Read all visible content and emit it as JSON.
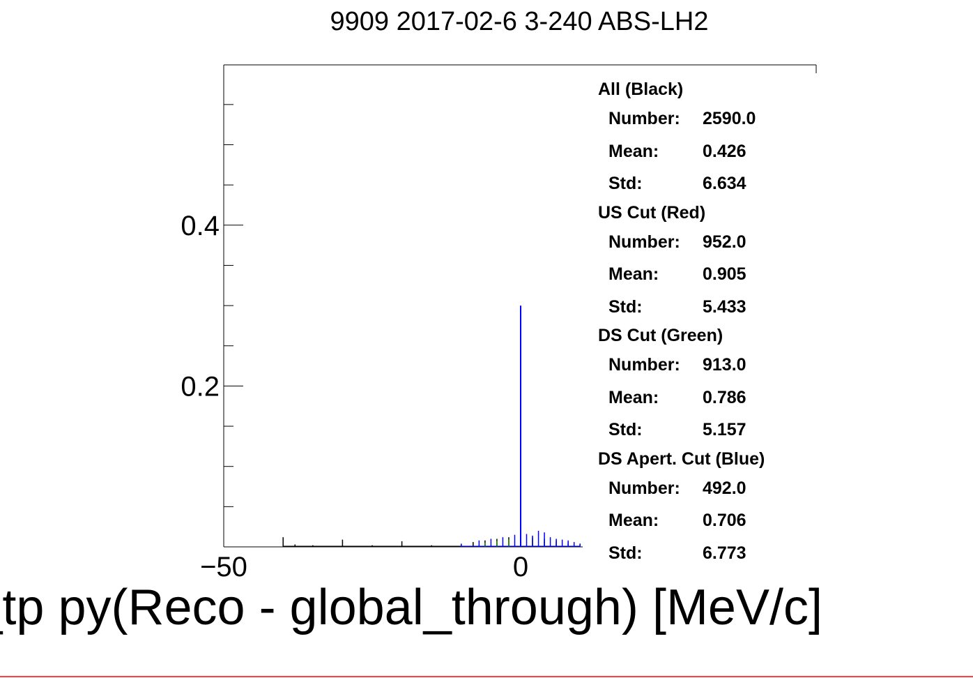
{
  "title": "9909 2017-02-6 3-240 ABS-LH2",
  "chart_data": {
    "type": "histogram",
    "title": "9909 2017-02-6 3-240 ABS-LH2",
    "xlabel": "_tp py(Reco - global_through) [MeV/c]",
    "ylabel": "",
    "xlim": [
      -50,
      10
    ],
    "ylim": [
      0,
      0.58
    ],
    "x_ticks": [
      -50,
      0
    ],
    "x_tick_labels": [
      "−50",
      "0"
    ],
    "y_ticks": [
      0.2,
      0.4
    ],
    "y_tick_labels": [
      "0.2",
      "0.4"
    ],
    "grid": false,
    "series": [
      {
        "name": "All (Black)",
        "color": "#000000",
        "x": [
          -40,
          -38,
          -35,
          -30,
          -25,
          -20,
          -15,
          -10,
          -8,
          -6,
          -4,
          -2,
          0,
          2,
          4,
          6,
          8,
          10
        ],
        "values": [
          0.012,
          0.003,
          0.002,
          0.009,
          0.002,
          0.007,
          0.002,
          0.003,
          0.006,
          0.008,
          0.01,
          0.012,
          0.014,
          0.012,
          0.01,
          0.008,
          0.006,
          0.004
        ]
      },
      {
        "name": "US Cut (Red)",
        "color": "#ff0000",
        "x": [
          -10,
          -6,
          -4,
          -2,
          0,
          2,
          4,
          6,
          8,
          10
        ],
        "values": [
          0.002,
          0.004,
          0.006,
          0.008,
          0.01,
          0.008,
          0.007,
          0.005,
          0.003,
          0.002
        ]
      },
      {
        "name": "DS Cut (Green)",
        "color": "#00a000",
        "x": [
          -10,
          -6,
          -4,
          -2,
          0,
          2,
          4,
          6,
          8,
          10
        ],
        "values": [
          0.002,
          0.005,
          0.007,
          0.009,
          0.011,
          0.009,
          0.008,
          0.006,
          0.004,
          0.002
        ]
      },
      {
        "name": "DS Apert. Cut (Blue)",
        "color": "#0000ff",
        "x": [
          -10,
          -7,
          -5,
          -3,
          -1,
          0,
          1,
          2,
          3,
          4,
          5,
          6,
          7,
          8,
          9,
          10
        ],
        "values": [
          0.004,
          0.008,
          0.01,
          0.012,
          0.015,
          0.3,
          0.016,
          0.014,
          0.02,
          0.018,
          0.012,
          0.01,
          0.009,
          0.008,
          0.006,
          0.004
        ]
      }
    ]
  },
  "stats": [
    {
      "name": "All (Black)",
      "number_label": "Number:",
      "number": "2590.0",
      "mean_label": "Mean:",
      "mean": "0.426",
      "std_label": "Std:",
      "std": "6.634"
    },
    {
      "name": "US Cut (Red)",
      "number_label": "Number:",
      "number": "952.0",
      "mean_label": "Mean:",
      "mean": "0.905",
      "std_label": "Std:",
      "std": "5.433"
    },
    {
      "name": "DS Cut (Green)",
      "number_label": "Number:",
      "number": "913.0",
      "mean_label": "Mean:",
      "mean": "0.786",
      "std_label": "Std:",
      "std": "5.157"
    },
    {
      "name": "DS Apert. Cut (Blue)",
      "number_label": "Number:",
      "number": "492.0",
      "mean_label": "Mean:",
      "mean": "0.706",
      "std_label": "Std:",
      "std": "6.773"
    }
  ],
  "colors": {
    "frame": "#000000",
    "bottom_strip": "#ff4040"
  }
}
